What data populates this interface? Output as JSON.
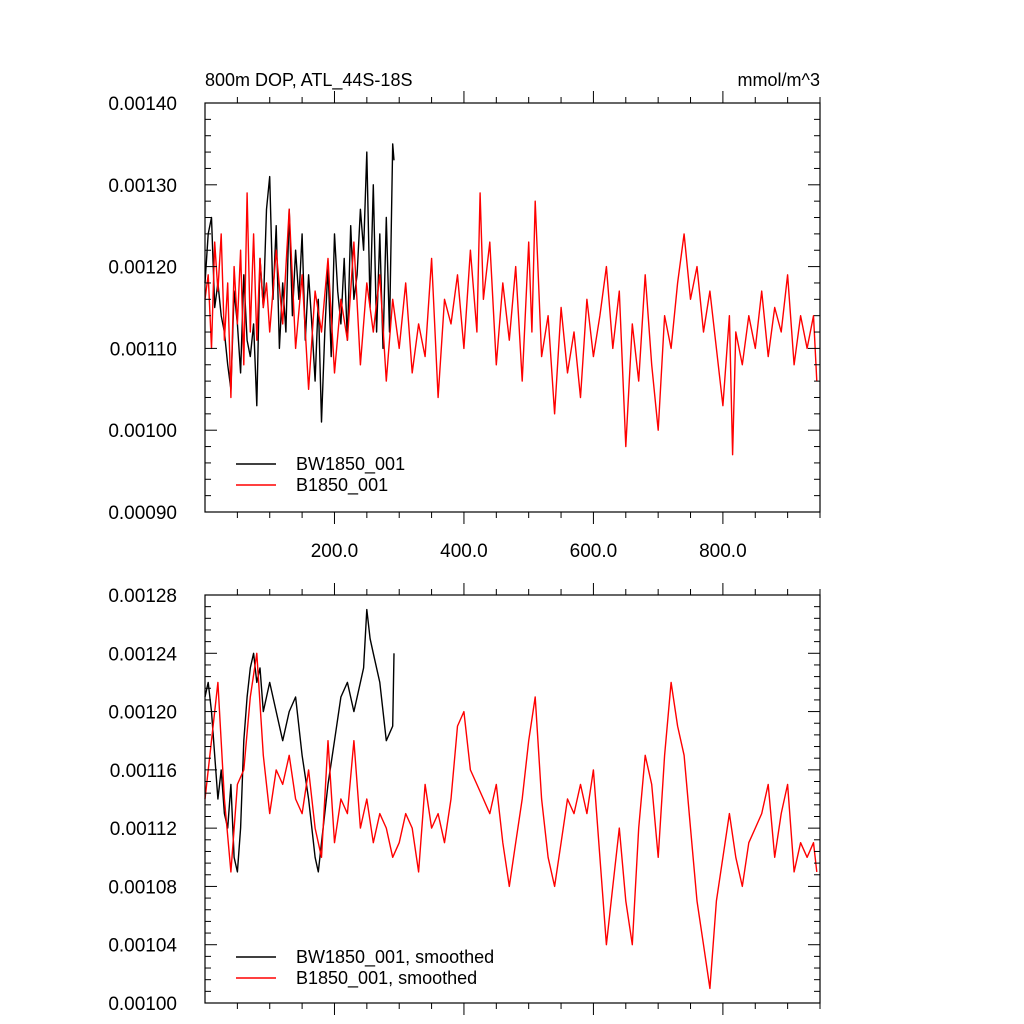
{
  "chart_data": [
    {
      "type": "line",
      "title": "800m DOP, ATL_44S-18S",
      "units": "mmol/m^3",
      "xlim": [
        0,
        950
      ],
      "ylim": [
        0.0009,
        0.0014
      ],
      "xticks": [
        200,
        400,
        600,
        800
      ],
      "xtick_labels": [
        "200.0",
        "400.0",
        "600.0",
        "800.0"
      ],
      "yticks": [
        0.0009,
        0.001,
        0.0011,
        0.0012,
        0.0013,
        0.0014
      ],
      "ytick_labels": [
        "0.00090",
        "0.00100",
        "0.00110",
        "0.00120",
        "0.00130",
        "0.00140"
      ],
      "grid": false,
      "legend": "bottom-left",
      "series": [
        {
          "name": "BW1850_001",
          "color": "#000000",
          "x": [
            0,
            5,
            10,
            15,
            20,
            25,
            30,
            35,
            40,
            45,
            50,
            55,
            60,
            65,
            70,
            75,
            80,
            85,
            90,
            95,
            100,
            105,
            110,
            115,
            120,
            125,
            130,
            135,
            140,
            145,
            150,
            155,
            160,
            165,
            170,
            175,
            180,
            185,
            190,
            195,
            200,
            205,
            210,
            215,
            220,
            225,
            230,
            235,
            240,
            245,
            250,
            255,
            260,
            265,
            270,
            275,
            280,
            285,
            290,
            292
          ],
          "values": [
            0.00118,
            0.00124,
            0.00126,
            0.00115,
            0.00118,
            0.00114,
            0.00112,
            0.00108,
            0.00105,
            0.00117,
            0.00113,
            0.00107,
            0.00119,
            0.00111,
            0.00109,
            0.00113,
            0.00103,
            0.00121,
            0.00115,
            0.00127,
            0.00131,
            0.00116,
            0.00125,
            0.0011,
            0.00118,
            0.00112,
            0.00127,
            0.00114,
            0.00122,
            0.00116,
            0.00124,
            0.00111,
            0.00119,
            0.00113,
            0.00106,
            0.00116,
            0.00101,
            0.00112,
            0.0012,
            0.00109,
            0.00124,
            0.00117,
            0.00113,
            0.00121,
            0.00111,
            0.00125,
            0.00116,
            0.00119,
            0.00127,
            0.00122,
            0.00134,
            0.00115,
            0.0013,
            0.00112,
            0.00124,
            0.0011,
            0.00126,
            0.00112,
            0.00135,
            0.00133
          ]
        },
        {
          "name": "B1850_001",
          "color": "#ff0000",
          "x": [
            0,
            5,
            10,
            15,
            20,
            25,
            30,
            35,
            40,
            45,
            50,
            55,
            60,
            65,
            70,
            75,
            80,
            85,
            90,
            95,
            100,
            110,
            120,
            130,
            140,
            150,
            160,
            170,
            180,
            190,
            200,
            210,
            220,
            230,
            240,
            250,
            260,
            270,
            280,
            290,
            300,
            310,
            320,
            330,
            340,
            350,
            360,
            370,
            380,
            390,
            400,
            410,
            420,
            425,
            430,
            440,
            450,
            460,
            470,
            480,
            490,
            500,
            505,
            510,
            520,
            530,
            540,
            550,
            560,
            570,
            580,
            590,
            600,
            610,
            620,
            630,
            640,
            650,
            660,
            670,
            680,
            690,
            700,
            710,
            720,
            730,
            740,
            750,
            760,
            770,
            780,
            790,
            800,
            810,
            815,
            820,
            830,
            840,
            850,
            860,
            870,
            880,
            890,
            900,
            910,
            920,
            930,
            940,
            945
          ],
          "values": [
            0.00116,
            0.00119,
            0.0011,
            0.00123,
            0.00117,
            0.00124,
            0.00111,
            0.00118,
            0.00104,
            0.0012,
            0.00113,
            0.00122,
            0.00108,
            0.00129,
            0.00112,
            0.00124,
            0.00111,
            0.00121,
            0.00115,
            0.00118,
            0.00112,
            0.00122,
            0.00113,
            0.00127,
            0.0011,
            0.00119,
            0.00105,
            0.00117,
            0.00112,
            0.00121,
            0.00107,
            0.00116,
            0.00111,
            0.00123,
            0.00108,
            0.00118,
            0.00112,
            0.00119,
            0.00106,
            0.00116,
            0.0011,
            0.00118,
            0.00107,
            0.00113,
            0.00109,
            0.00121,
            0.00104,
            0.00116,
            0.00113,
            0.00119,
            0.0011,
            0.00122,
            0.00112,
            0.00129,
            0.00116,
            0.00123,
            0.00108,
            0.00118,
            0.00111,
            0.0012,
            0.00106,
            0.00123,
            0.00112,
            0.00128,
            0.00109,
            0.00114,
            0.00102,
            0.00115,
            0.00107,
            0.00112,
            0.00104,
            0.00116,
            0.00109,
            0.00114,
            0.0012,
            0.0011,
            0.00117,
            0.00098,
            0.00113,
            0.00106,
            0.00119,
            0.00108,
            0.001,
            0.00114,
            0.0011,
            0.00118,
            0.00124,
            0.00116,
            0.0012,
            0.00112,
            0.00117,
            0.0011,
            0.00103,
            0.00114,
            0.00097,
            0.00112,
            0.00108,
            0.00114,
            0.0011,
            0.00117,
            0.00109,
            0.00115,
            0.00112,
            0.00119,
            0.00108,
            0.00114,
            0.0011,
            0.00114,
            0.00106
          ]
        }
      ]
    },
    {
      "type": "line",
      "title": "",
      "xlim": [
        0,
        950
      ],
      "ylim": [
        0.001,
        0.00128
      ],
      "xticks": [
        200,
        400,
        600,
        800
      ],
      "yticks": [
        0.001,
        0.00104,
        0.00108,
        0.00112,
        0.00116,
        0.0012,
        0.00124,
        0.00128
      ],
      "ytick_labels": [
        "0.00100",
        "0.00104",
        "0.00108",
        "0.00112",
        "0.00116",
        "0.00120",
        "0.00124",
        "0.00128"
      ],
      "grid": false,
      "legend": "bottom-left",
      "series": [
        {
          "name": "BW1850_001, smoothed",
          "color": "#000000",
          "x": [
            0,
            5,
            10,
            15,
            20,
            25,
            30,
            35,
            40,
            45,
            50,
            55,
            60,
            65,
            70,
            75,
            80,
            85,
            90,
            95,
            100,
            110,
            120,
            130,
            140,
            150,
            160,
            170,
            175,
            180,
            190,
            200,
            210,
            220,
            230,
            240,
            245,
            250,
            255,
            260,
            270,
            280,
            290,
            292
          ],
          "values": [
            0.00121,
            0.00122,
            0.0012,
            0.00117,
            0.00114,
            0.00116,
            0.00113,
            0.00112,
            0.00115,
            0.0011,
            0.00109,
            0.00112,
            0.00118,
            0.00121,
            0.00123,
            0.00124,
            0.00122,
            0.00123,
            0.0012,
            0.00121,
            0.00122,
            0.0012,
            0.00118,
            0.0012,
            0.00121,
            0.00117,
            0.00114,
            0.0011,
            0.00109,
            0.00111,
            0.00115,
            0.00118,
            0.00121,
            0.00122,
            0.0012,
            0.00122,
            0.00123,
            0.00127,
            0.00125,
            0.00124,
            0.00122,
            0.00118,
            0.00119,
            0.00124
          ]
        },
        {
          "name": "B1850_001, smoothed",
          "color": "#ff0000",
          "x": [
            0,
            10,
            20,
            30,
            40,
            50,
            60,
            70,
            80,
            90,
            100,
            110,
            120,
            130,
            140,
            150,
            160,
            170,
            180,
            190,
            200,
            210,
            220,
            230,
            240,
            250,
            260,
            270,
            280,
            290,
            300,
            310,
            320,
            330,
            340,
            350,
            360,
            370,
            380,
            390,
            400,
            410,
            420,
            430,
            440,
            450,
            460,
            470,
            480,
            490,
            500,
            510,
            520,
            530,
            540,
            550,
            560,
            570,
            580,
            590,
            600,
            610,
            620,
            630,
            640,
            650,
            660,
            670,
            680,
            690,
            700,
            710,
            720,
            730,
            740,
            750,
            760,
            770,
            780,
            790,
            800,
            810,
            820,
            830,
            840,
            850,
            860,
            870,
            880,
            890,
            900,
            910,
            920,
            930,
            940,
            945
          ],
          "values": [
            0.00114,
            0.00118,
            0.00122,
            0.00114,
            0.00109,
            0.00115,
            0.00116,
            0.00121,
            0.00124,
            0.00117,
            0.00113,
            0.00116,
            0.00115,
            0.00117,
            0.00114,
            0.00113,
            0.00116,
            0.00112,
            0.0011,
            0.00118,
            0.00111,
            0.00114,
            0.00113,
            0.00118,
            0.00112,
            0.00114,
            0.00111,
            0.00113,
            0.00112,
            0.0011,
            0.00111,
            0.00113,
            0.00112,
            0.00109,
            0.00115,
            0.00112,
            0.00113,
            0.00111,
            0.00114,
            0.00119,
            0.0012,
            0.00116,
            0.00115,
            0.00114,
            0.00113,
            0.00115,
            0.00111,
            0.00108,
            0.00111,
            0.00114,
            0.00118,
            0.00121,
            0.00114,
            0.0011,
            0.00108,
            0.00111,
            0.00114,
            0.00113,
            0.00115,
            0.00113,
            0.00116,
            0.0011,
            0.00104,
            0.00108,
            0.00112,
            0.00107,
            0.00104,
            0.00112,
            0.00117,
            0.00115,
            0.0011,
            0.00117,
            0.00122,
            0.00119,
            0.00117,
            0.00112,
            0.00107,
            0.00104,
            0.00101,
            0.00107,
            0.0011,
            0.00113,
            0.0011,
            0.00108,
            0.00111,
            0.00112,
            0.00113,
            0.00115,
            0.0011,
            0.00113,
            0.00115,
            0.00109,
            0.00111,
            0.0011,
            0.00111,
            0.00109
          ]
        }
      ]
    }
  ]
}
